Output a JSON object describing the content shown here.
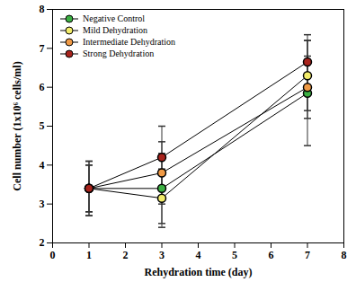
{
  "chart_data": {
    "type": "line",
    "x_label": "Rehydration time (day)",
    "y_label": "Cell number (1x10⁶ cells/ml)",
    "x": [
      1,
      3,
      7
    ],
    "series": [
      {
        "name": "Negative Control",
        "color": "#3cb043",
        "values": [
          3.4,
          3.4,
          5.85
        ],
        "errors": [
          0.7,
          0.9,
          1.35
        ]
      },
      {
        "name": "Mild Dehydration",
        "color": "#f2ec6a",
        "values": [
          3.4,
          3.15,
          6.3
        ],
        "errors": [
          0.6,
          0.75,
          0.9
        ]
      },
      {
        "name": "Intermediate Dehydration",
        "color": "#f09a45",
        "values": [
          3.4,
          3.8,
          6.0
        ],
        "errors": [
          0.6,
          0.8,
          0.8
        ]
      },
      {
        "name": "Strong Dehydration",
        "color": "#a8231c",
        "values": [
          3.4,
          4.2,
          6.65
        ],
        "errors": [
          0.7,
          0.8,
          0.7
        ]
      }
    ],
    "xlim": [
      0,
      8
    ],
    "xticks": [
      0,
      1,
      2,
      3,
      4,
      5,
      6,
      7,
      8
    ],
    "ylim": [
      2,
      8
    ],
    "yticks": [
      2,
      3,
      4,
      5,
      6,
      7,
      8
    ],
    "grid": false,
    "legend": "top-left",
    "marker": "circle"
  }
}
